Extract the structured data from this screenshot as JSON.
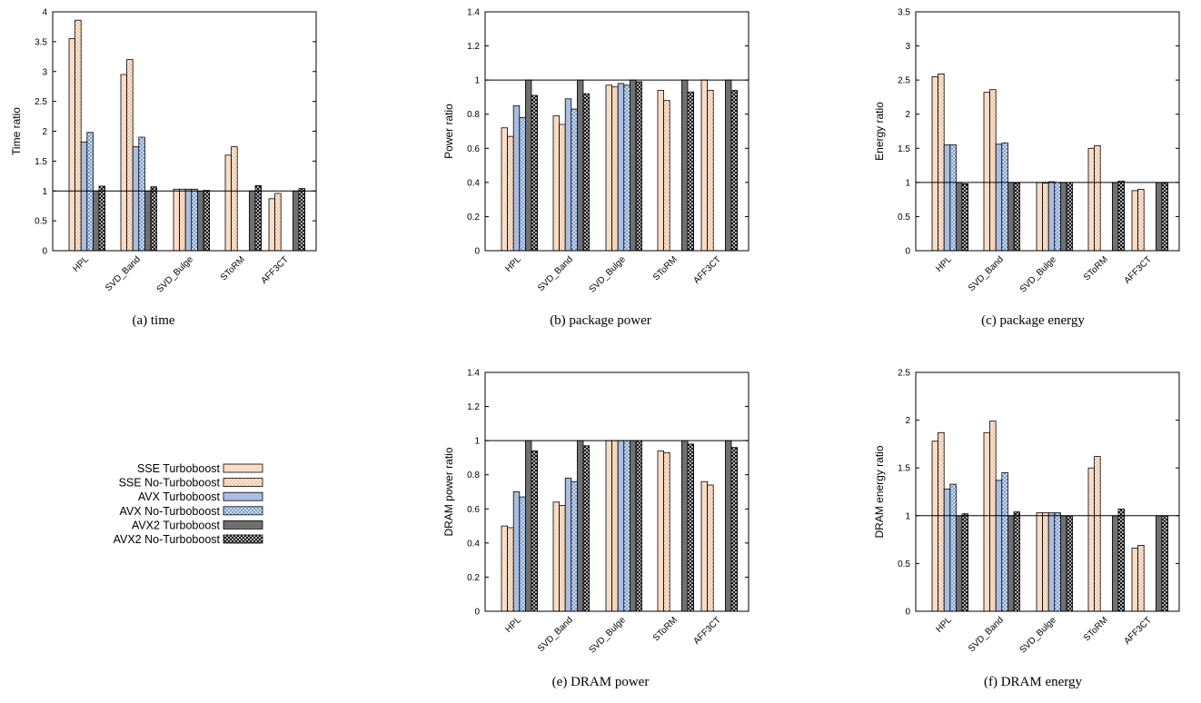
{
  "figure": {
    "series": [
      {
        "name": "SSE Turboboost",
        "style": "solid",
        "fill": "#fcdcc4"
      },
      {
        "name": "SSE No-Turboboost",
        "style": "hatch",
        "fill": "#f2bf98"
      },
      {
        "name": "AVX Turboboost",
        "style": "solid",
        "fill": "#a8bee2"
      },
      {
        "name": "AVX No-Turboboost",
        "style": "hatch",
        "fill": "#6f95cf"
      },
      {
        "name": "AVX2 Turboboost",
        "style": "solid",
        "fill": "#707070"
      },
      {
        "name": "AVX2 No-Turboboost",
        "style": "hatch",
        "fill": "#111111"
      }
    ],
    "categories": [
      "HPL",
      "SVD_Band",
      "SVD_Bulge",
      "SToRM",
      "AFF3CT"
    ]
  },
  "chart_data": [
    {
      "type": "bar",
      "caption": "(a) time",
      "ylabel": "Time ratio",
      "xlabel": "",
      "ylim": [
        0,
        4
      ],
      "yticks": [
        "0",
        "0.5",
        "1",
        "1.5",
        "2",
        "2.5",
        "3",
        "3.5",
        "4"
      ],
      "reference_line": 1,
      "categories": [
        "HPL",
        "SVD_Band",
        "SVD_Bulge",
        "SToRM",
        "AFF3CT"
      ],
      "series": [
        {
          "name": "SSE Turboboost",
          "values": [
            3.55,
            2.95,
            1.03,
            1.6,
            0.87
          ]
        },
        {
          "name": "SSE No-Turboboost",
          "values": [
            3.86,
            3.2,
            1.03,
            1.74,
            0.96
          ]
        },
        {
          "name": "AVX Turboboost",
          "values": [
            1.82,
            1.74,
            1.03,
            null,
            null
          ]
        },
        {
          "name": "AVX No-Turboboost",
          "values": [
            1.98,
            1.9,
            1.03,
            null,
            null
          ]
        },
        {
          "name": "AVX2 Turboboost",
          "values": [
            1,
            1,
            1,
            1,
            1
          ]
        },
        {
          "name": "AVX2 No-Turboboost",
          "values": [
            1.08,
            1.07,
            1.01,
            1.09,
            1.04
          ]
        }
      ]
    },
    {
      "type": "bar",
      "caption": "(b) package power",
      "ylabel": "Power ratio",
      "xlabel": "",
      "ylim": [
        0,
        1.4
      ],
      "yticks": [
        "0",
        "0.2",
        "0.4",
        "0.6",
        "0.8",
        "1",
        "1.2",
        "1.4"
      ],
      "reference_line": 1,
      "categories": [
        "HPL",
        "SVD_Band",
        "SVD_Bulge",
        "SToRM",
        "AFF3CT"
      ],
      "series": [
        {
          "name": "SSE Turboboost",
          "values": [
            0.72,
            0.79,
            0.97,
            0.94,
            1.0
          ]
        },
        {
          "name": "SSE No-Turboboost",
          "values": [
            0.67,
            0.74,
            0.96,
            0.88,
            0.94
          ]
        },
        {
          "name": "AVX Turboboost",
          "values": [
            0.85,
            0.89,
            0.98,
            null,
            null
          ]
        },
        {
          "name": "AVX No-Turboboost",
          "values": [
            0.78,
            0.83,
            0.97,
            null,
            null
          ]
        },
        {
          "name": "AVX2 Turboboost",
          "values": [
            1,
            1,
            1,
            1,
            1
          ]
        },
        {
          "name": "AVX2 No-Turboboost",
          "values": [
            0.91,
            0.92,
            0.99,
            0.93,
            0.94
          ]
        }
      ]
    },
    {
      "type": "bar",
      "caption": "(c) package energy",
      "ylabel": "Energy ratio",
      "xlabel": "",
      "ylim": [
        0,
        3.5
      ],
      "yticks": [
        "0",
        "0.5",
        "1",
        "1.5",
        "2",
        "2.5",
        "3",
        "3.5"
      ],
      "reference_line": 1,
      "categories": [
        "HPL",
        "SVD_Band",
        "SVD_Bulge",
        "SToRM",
        "AFF3CT"
      ],
      "series": [
        {
          "name": "SSE Turboboost",
          "values": [
            2.55,
            2.32,
            1.0,
            1.5,
            0.88
          ]
        },
        {
          "name": "SSE No-Turboboost",
          "values": [
            2.59,
            2.36,
            0.99,
            1.54,
            0.9
          ]
        },
        {
          "name": "AVX Turboboost",
          "values": [
            1.55,
            1.56,
            1.01,
            null,
            null
          ]
        },
        {
          "name": "AVX No-Turboboost",
          "values": [
            1.55,
            1.58,
            1.0,
            null,
            null
          ]
        },
        {
          "name": "AVX2 Turboboost",
          "values": [
            1,
            1,
            1,
            1,
            1
          ]
        },
        {
          "name": "AVX2 No-Turboboost",
          "values": [
            0.98,
            0.99,
            1.0,
            1.02,
            0.99
          ]
        }
      ]
    },
    {
      "type": "bar",
      "caption": "(e) DRAM power",
      "ylabel": "DRAM power ratio",
      "xlabel": "",
      "ylim": [
        0,
        1.4
      ],
      "yticks": [
        "0",
        "0.2",
        "0.4",
        "0.6",
        "0.8",
        "1",
        "1.2",
        "1.4"
      ],
      "reference_line": 1,
      "categories": [
        "HPL",
        "SVD_Band",
        "SVD_Bulge",
        "SToRM",
        "AFF3CT"
      ],
      "series": [
        {
          "name": "SSE Turboboost",
          "values": [
            0.5,
            0.64,
            1.0,
            0.94,
            0.76
          ]
        },
        {
          "name": "SSE No-Turboboost",
          "values": [
            0.49,
            0.62,
            1.0,
            0.93,
            0.74
          ]
        },
        {
          "name": "AVX Turboboost",
          "values": [
            0.7,
            0.78,
            1.0,
            null,
            null
          ]
        },
        {
          "name": "AVX No-Turboboost",
          "values": [
            0.67,
            0.76,
            1.0,
            null,
            null
          ]
        },
        {
          "name": "AVX2 Turboboost",
          "values": [
            1,
            1,
            1,
            1,
            1
          ]
        },
        {
          "name": "AVX2 No-Turboboost",
          "values": [
            0.94,
            0.97,
            1.0,
            0.98,
            0.96
          ]
        }
      ]
    },
    {
      "type": "bar",
      "caption": "(f) DRAM energy",
      "ylabel": "DRAM energy ratio",
      "xlabel": "",
      "ylim": [
        0,
        2.5
      ],
      "yticks": [
        "0",
        "0.5",
        "1",
        "1.5",
        "2",
        "2.5"
      ],
      "reference_line": 1,
      "categories": [
        "HPL",
        "SVD_Band",
        "SVD_Bulge",
        "SToRM",
        "AFF3CT"
      ],
      "series": [
        {
          "name": "SSE Turboboost",
          "values": [
            1.78,
            1.87,
            1.03,
            1.5,
            0.66
          ]
        },
        {
          "name": "SSE No-Turboboost",
          "values": [
            1.87,
            1.99,
            1.03,
            1.62,
            0.69
          ]
        },
        {
          "name": "AVX Turboboost",
          "values": [
            1.28,
            1.37,
            1.03,
            null,
            null
          ]
        },
        {
          "name": "AVX No-Turboboost",
          "values": [
            1.33,
            1.45,
            1.03,
            null,
            null
          ]
        },
        {
          "name": "AVX2 Turboboost",
          "values": [
            1,
            1,
            1,
            1,
            1
          ]
        },
        {
          "name": "AVX2 No-Turboboost",
          "values": [
            1.02,
            1.04,
            1.0,
            1.07,
            1.0
          ]
        }
      ]
    }
  ]
}
